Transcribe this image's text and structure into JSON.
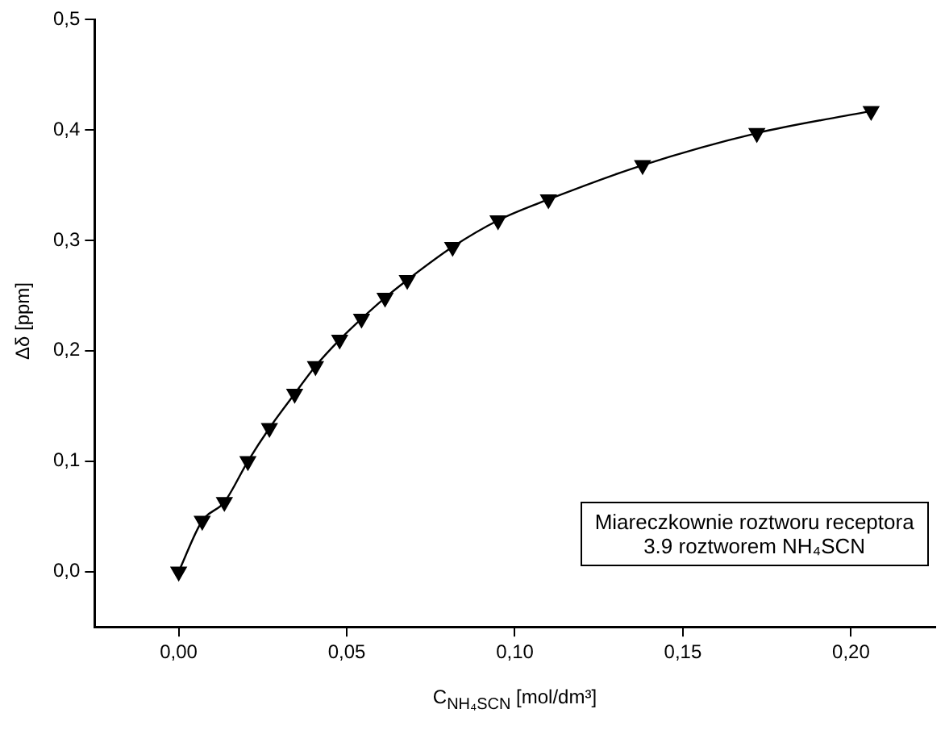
{
  "chart_data": {
    "type": "line",
    "xlabel": "C$_{NH₄SCN}$ [mol/dm³]",
    "ylabel": "Δδ [ppm]",
    "annotations": [
      "Miareczkownie roztworu receptora",
      "3.9 roztworem NH₄SCN"
    ],
    "x": [
      0.0,
      0.007,
      0.0136,
      0.0206,
      0.027,
      0.0345,
      0.0407,
      0.0479,
      0.0544,
      0.0614,
      0.068,
      0.0815,
      0.095,
      0.11,
      0.138,
      0.172,
      0.206
    ],
    "series": [
      {
        "color": "#000000",
        "values": [
          0.0,
          0.046,
          0.063,
          0.1,
          0.13,
          0.161,
          0.186,
          0.21,
          0.229,
          0.248,
          0.264,
          0.294,
          0.318,
          0.337,
          0.368,
          0.397,
          0.417
        ]
      }
    ],
    "xlim": [
      -0.025,
      0.225
    ],
    "ylim": [
      -0.05,
      0.5
    ],
    "xticks": [
      {
        "value": 0,
        "label": "0,00"
      },
      {
        "value": 0.05,
        "label": "0,05"
      },
      {
        "value": 0.1,
        "label": "0,10"
      },
      {
        "value": 0.15,
        "label": "0,15"
      },
      {
        "value": 0.2,
        "label": "0,20"
      }
    ],
    "yticks": [
      {
        "value": 0,
        "label": "0,0"
      },
      {
        "value": 0.1,
        "label": "0,1"
      },
      {
        "value": 0.2,
        "label": "0,2"
      },
      {
        "value": 0.3,
        "label": "0,3"
      },
      {
        "value": 0.4,
        "label": "0,4"
      },
      {
        "value": 0.5,
        "label": "0,5"
      }
    ],
    "grid": false,
    "legend": false,
    "marker": "triangle",
    "line_style": "solid"
  }
}
